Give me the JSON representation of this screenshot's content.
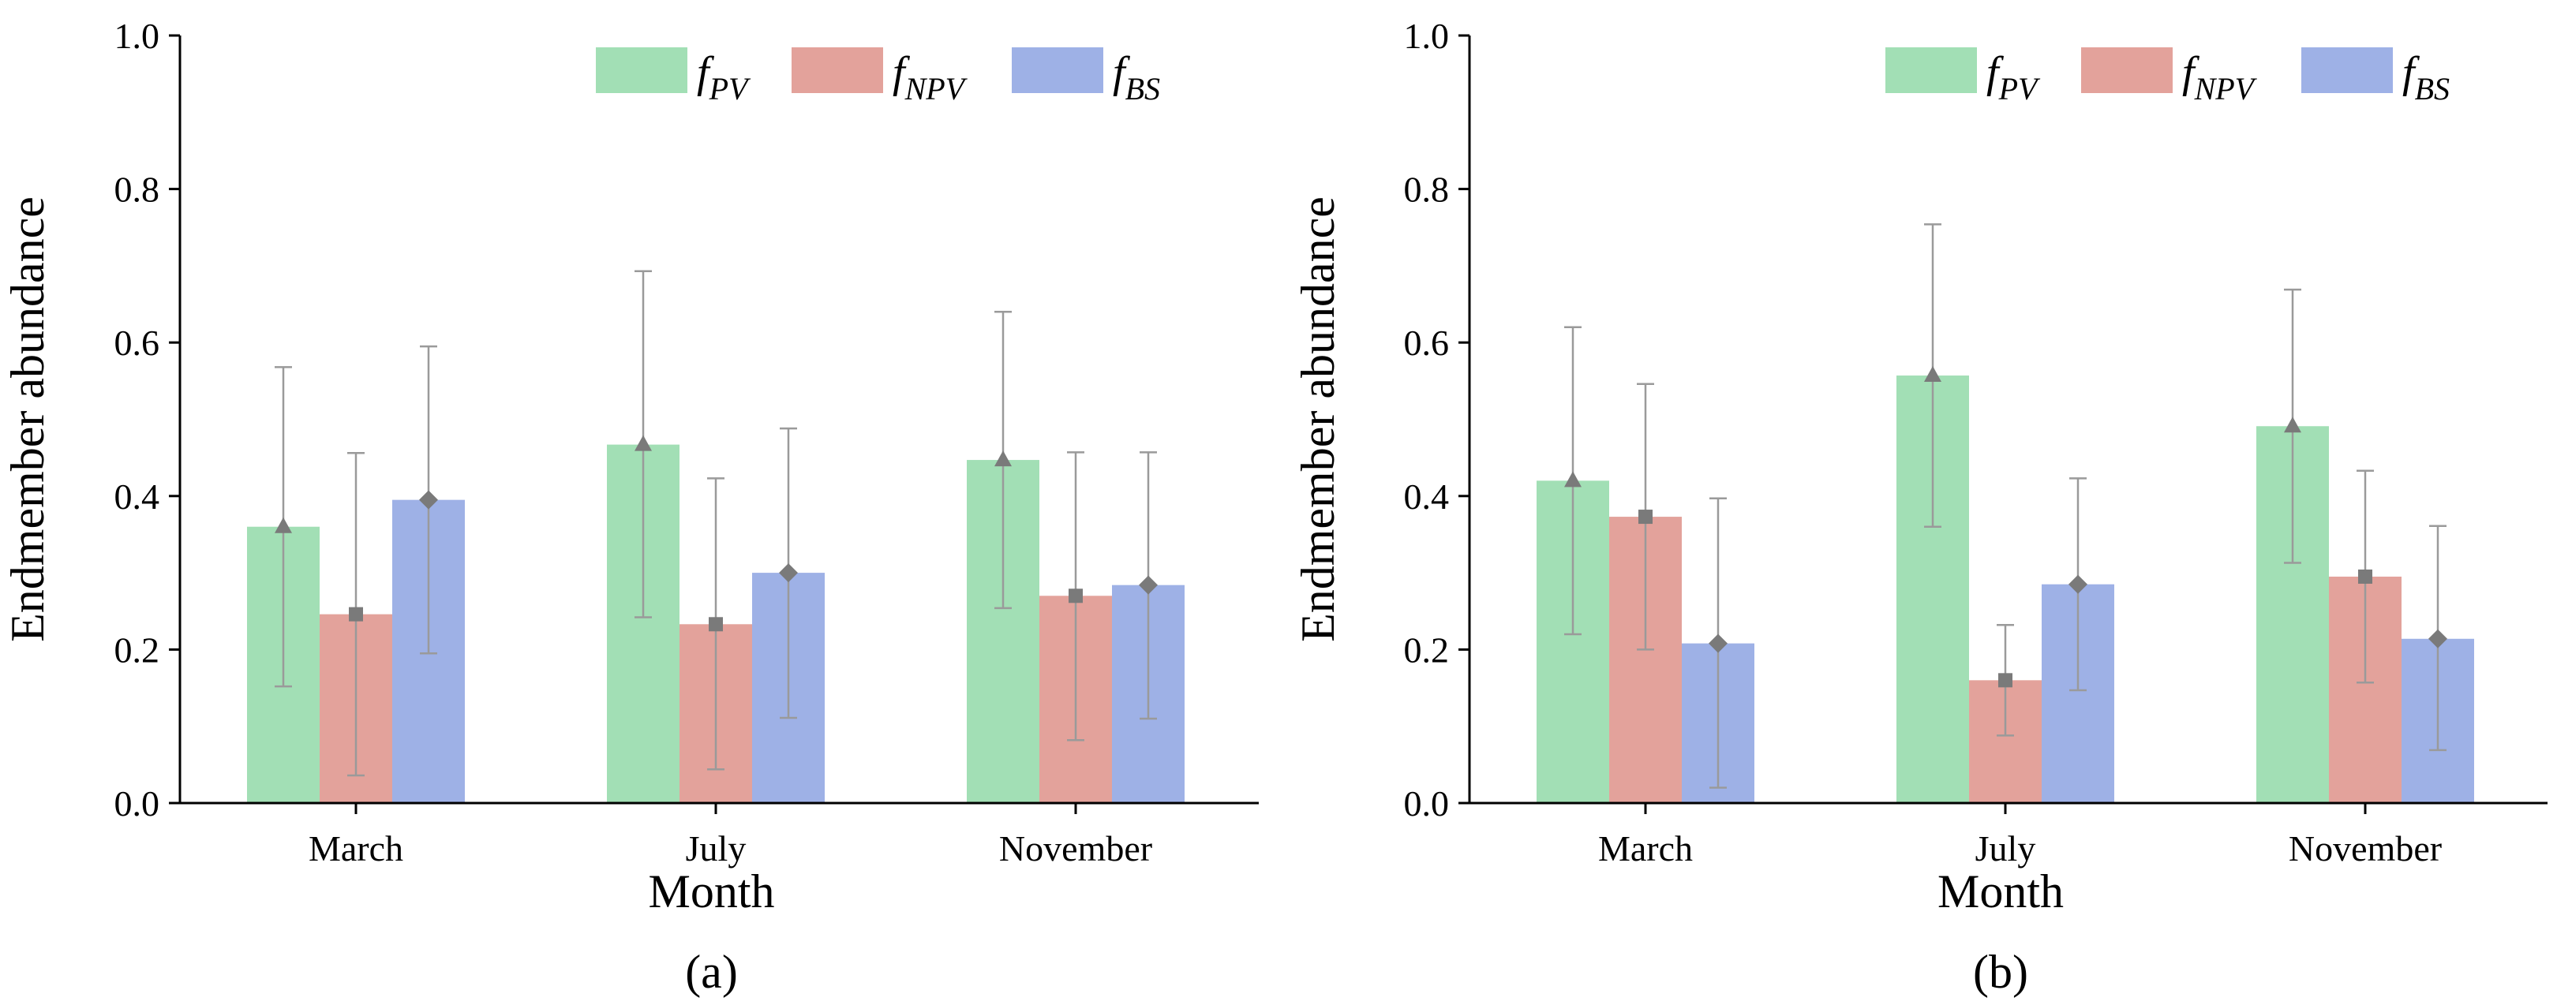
{
  "chart_data": [
    {
      "type": "bar",
      "panel_label": "(a)",
      "xlabel": "Month",
      "ylabel": "Endmember abundance",
      "categories": [
        "March",
        "July",
        "November"
      ],
      "ylim": [
        0,
        1.0
      ],
      "yticks": [
        "0.0",
        "0.2",
        "0.4",
        "0.6",
        "0.8",
        "1.0"
      ],
      "legend_position": "top-right",
      "series": [
        {
          "name": "f",
          "subscript": "PV",
          "color": "#a2dfb5",
          "marker": "triangle",
          "values": [
            0.36,
            0.467,
            0.447
          ],
          "err_low": [
            0.152,
            0.242,
            0.254
          ],
          "err_high": [
            0.568,
            0.693,
            0.64
          ]
        },
        {
          "name": "f",
          "subscript": "NPV",
          "color": "#e3a29b",
          "marker": "square",
          "values": [
            0.246,
            0.233,
            0.27
          ],
          "err_low": [
            0.036,
            0.044,
            0.082
          ],
          "err_high": [
            0.456,
            0.423,
            0.457
          ]
        },
        {
          "name": "f",
          "subscript": "BS",
          "color": "#9eb1e6",
          "marker": "diamond",
          "values": [
            0.395,
            0.3,
            0.284
          ],
          "err_low": [
            0.195,
            0.111,
            0.11
          ],
          "err_high": [
            0.595,
            0.488,
            0.457
          ]
        }
      ]
    },
    {
      "type": "bar",
      "panel_label": "(b)",
      "xlabel": "Month",
      "ylabel": "Endmember abundance",
      "categories": [
        "March",
        "July",
        "November"
      ],
      "ylim": [
        0,
        1.0
      ],
      "yticks": [
        "0.0",
        "0.2",
        "0.4",
        "0.6",
        "0.8",
        "1.0"
      ],
      "legend_position": "top-right",
      "series": [
        {
          "name": "f",
          "subscript": "PV",
          "color": "#a2dfb5",
          "marker": "triangle",
          "values": [
            0.42,
            0.557,
            0.491
          ],
          "err_low": [
            0.22,
            0.36,
            0.313
          ],
          "err_high": [
            0.62,
            0.754,
            0.669
          ]
        },
        {
          "name": "f",
          "subscript": "NPV",
          "color": "#e3a29b",
          "marker": "square",
          "values": [
            0.373,
            0.16,
            0.295
          ],
          "err_low": [
            0.2,
            0.088,
            0.157
          ],
          "err_high": [
            0.546,
            0.232,
            0.433
          ]
        },
        {
          "name": "f",
          "subscript": "BS",
          "color": "#9eb1e6",
          "marker": "diamond",
          "values": [
            0.208,
            0.285,
            0.214
          ],
          "err_low": [
            0.02,
            0.147,
            0.069
          ],
          "err_high": [
            0.397,
            0.423,
            0.361
          ]
        }
      ]
    }
  ]
}
